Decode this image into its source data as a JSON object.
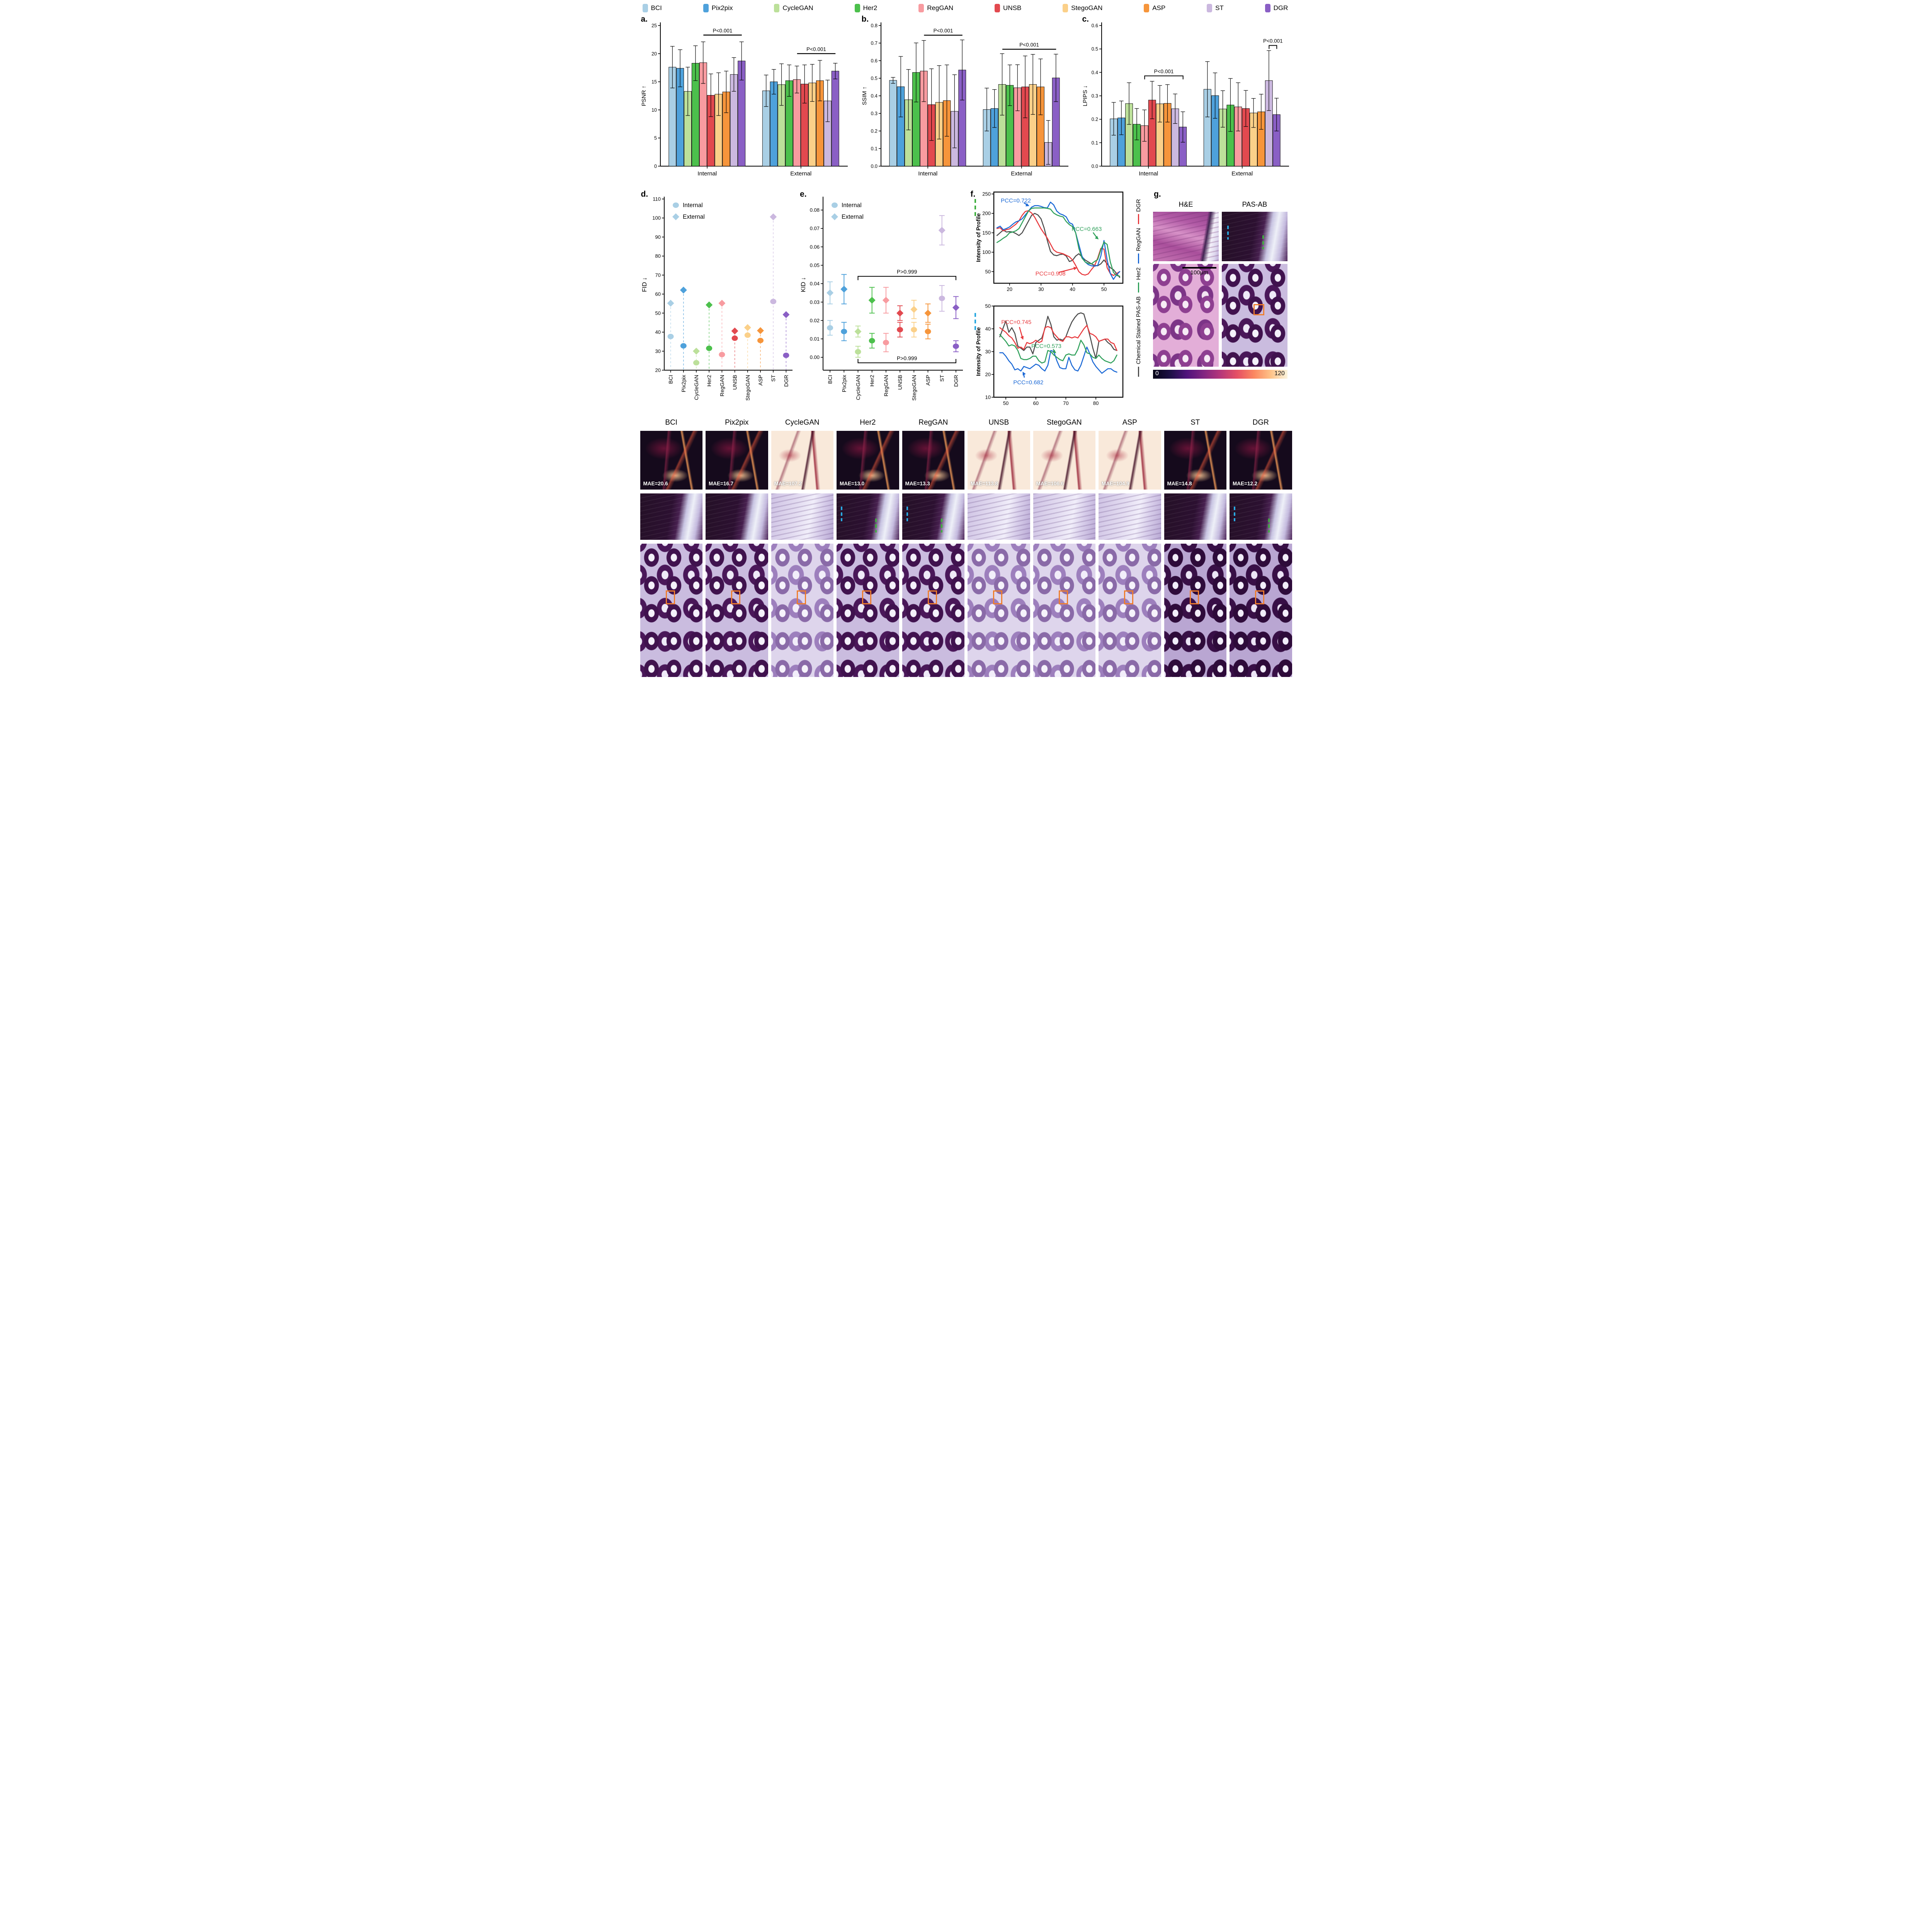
{
  "legend": {
    "items": [
      {
        "label": "BCI",
        "color": "#A9CFE5"
      },
      {
        "label": "Pix2pix",
        "color": "#4EA1DB"
      },
      {
        "label": "CycleGAN",
        "color": "#BCE09A"
      },
      {
        "label": "Her2",
        "color": "#4CC04C"
      },
      {
        "label": "RegGAN",
        "color": "#F89BA0"
      },
      {
        "label": "UNSB",
        "color": "#E2494F"
      },
      {
        "label": "StegoGAN",
        "color": "#FBD089"
      },
      {
        "label": "ASP",
        "color": "#F6953B"
      },
      {
        "label": "ST",
        "color": "#CBB8DF"
      },
      {
        "label": "DGR",
        "color": "#8A5FC5"
      }
    ]
  },
  "chart_data": {
    "colors": [
      "#A9CFE5",
      "#4EA1DB",
      "#BCE09A",
      "#4CC04C",
      "#F89BA0",
      "#E2494F",
      "#FBD089",
      "#F6953B",
      "#CBB8DF",
      "#8A5FC5"
    ],
    "methods": [
      "BCI",
      "Pix2pix",
      "CycleGAN",
      "Her2",
      "RegGAN",
      "UNSB",
      "StegoGAN",
      "ASP",
      "ST",
      "DGR"
    ],
    "psnr": {
      "type": "bar",
      "tag": "a.",
      "ylabel": "PSNR ↑",
      "ylim": [
        0,
        25
      ],
      "yticks": [
        0,
        5,
        10,
        15,
        20,
        25
      ],
      "ydec": 0,
      "groups": [
        "Internal",
        "External"
      ],
      "values": [
        [
          17.6,
          17.4,
          13.3,
          18.3,
          18.4,
          12.6,
          12.8,
          13.2,
          16.3,
          18.7
        ],
        [
          13.4,
          15.0,
          14.5,
          15.2,
          15.4,
          14.6,
          14.8,
          15.2,
          11.6,
          16.9
        ]
      ],
      "errors": [
        [
          3.7,
          3.3,
          4.3,
          3.1,
          3.7,
          3.8,
          3.8,
          3.7,
          3.0,
          3.4
        ],
        [
          2.8,
          2.2,
          3.7,
          2.8,
          2.4,
          3.4,
          3.3,
          3.6,
          3.7,
          1.4
        ]
      ],
      "annotations": [
        {
          "group": 0,
          "from": 4,
          "to": 9,
          "y": 23.3,
          "label": "P<0.001",
          "style": "line"
        },
        {
          "group": 1,
          "from": 4,
          "to": 9,
          "y": 20.0,
          "label": "P<0.001",
          "style": "line"
        }
      ]
    },
    "ssim": {
      "type": "bar",
      "tag": "b.",
      "ylabel": "SSIM ↑",
      "ylim": [
        0,
        0.8
      ],
      "yticks": [
        0,
        0.1,
        0.2,
        0.3,
        0.4,
        0.5,
        0.6,
        0.7,
        0.8
      ],
      "ydec": 1,
      "groups": [
        "Internal",
        "External"
      ],
      "values": [
        [
          0.488,
          0.452,
          0.378,
          0.533,
          0.541,
          0.35,
          0.363,
          0.373,
          0.312,
          0.547
        ],
        [
          0.322,
          0.328,
          0.465,
          0.46,
          0.446,
          0.451,
          0.465,
          0.451,
          0.135,
          0.502
        ]
      ],
      "errors": [
        [
          0.017,
          0.172,
          0.172,
          0.168,
          0.174,
          0.204,
          0.209,
          0.203,
          0.208,
          0.171
        ],
        [
          0.122,
          0.108,
          0.175,
          0.116,
          0.131,
          0.176,
          0.171,
          0.159,
          0.125,
          0.135
        ]
      ],
      "annotations": [
        {
          "group": 0,
          "from": 4,
          "to": 9,
          "y": 0.745,
          "label": "P<0.001",
          "style": "line"
        },
        {
          "group": 1,
          "from": 2,
          "to": 9,
          "y": 0.665,
          "label": "P<0.001",
          "style": "line"
        }
      ]
    },
    "lpips": {
      "type": "bar",
      "tag": "c.",
      "ylabel": "LPIPS ↓",
      "ylim": [
        0,
        0.6
      ],
      "yticks": [
        0,
        0.1,
        0.2,
        0.3,
        0.4,
        0.5,
        0.6
      ],
      "ydec": 1,
      "groups": [
        "Internal",
        "External"
      ],
      "values": [
        [
          0.202,
          0.206,
          0.267,
          0.179,
          0.173,
          0.282,
          0.266,
          0.268,
          0.245,
          0.167
        ],
        [
          0.328,
          0.301,
          0.244,
          0.261,
          0.253,
          0.246,
          0.227,
          0.232,
          0.365,
          0.22
        ]
      ],
      "errors": [
        [
          0.07,
          0.072,
          0.089,
          0.067,
          0.067,
          0.08,
          0.078,
          0.08,
          0.063,
          0.065
        ],
        [
          0.118,
          0.097,
          0.078,
          0.113,
          0.103,
          0.077,
          0.062,
          0.075,
          0.128,
          0.07
        ]
      ],
      "annotations": [
        {
          "group": 0,
          "from": 4,
          "to": 9,
          "y": 0.385,
          "label": "P<0.001",
          "style": "bracket"
        },
        {
          "group": 1,
          "from": 8,
          "to": 9,
          "y": 0.515,
          "label": "P<0.001",
          "style": "bracket"
        }
      ]
    },
    "fid": {
      "type": "scatter",
      "tag": "d.",
      "ylabel": "FID ↓",
      "ylim": [
        20,
        110
      ],
      "yticks": [
        20,
        30,
        40,
        50,
        60,
        70,
        80,
        90,
        100,
        110
      ],
      "ydec": 0,
      "legend": [
        "Internal",
        "External"
      ],
      "internal": [
        37.7,
        32.8,
        23.9,
        31.5,
        28.2,
        36.8,
        38.4,
        35.6,
        56.1,
        27.8
      ],
      "external": [
        55.2,
        62.1,
        30.0,
        54.3,
        55.2,
        40.6,
        42.4,
        40.8,
        100.6,
        49.2
      ]
    },
    "kid": {
      "type": "scatter",
      "tag": "e.",
      "ylabel": "KID ↓",
      "ylim": [
        -0.007,
        0.086
      ],
      "yticks": [
        0,
        0.01,
        0.02,
        0.03,
        0.04,
        0.05,
        0.06,
        0.07,
        0.08
      ],
      "ydec": 2,
      "legend": [
        "Internal",
        "External"
      ],
      "internal": [
        0.016,
        0.014,
        0.003,
        0.009,
        0.008,
        0.015,
        0.015,
        0.014,
        0.032,
        0.006
      ],
      "internal_err": [
        0.004,
        0.005,
        0.003,
        0.004,
        0.005,
        0.004,
        0.004,
        0.004,
        0.007,
        0.003
      ],
      "external": [
        0.035,
        0.037,
        0.014,
        0.031,
        0.031,
        0.024,
        0.026,
        0.024,
        0.069,
        0.027
      ],
      "external_err": [
        0.006,
        0.008,
        0.003,
        0.007,
        0.007,
        0.004,
        0.005,
        0.005,
        0.008,
        0.006
      ],
      "brackets": [
        {
          "from": 2,
          "to": 9,
          "y": 0.044,
          "label": "P>0.999",
          "dir": "down"
        },
        {
          "from": 2,
          "to": 9,
          "y": -0.003,
          "label": "P>0.999",
          "dir": "up"
        }
      ]
    },
    "profile_top": {
      "type": "line",
      "tag": "f.",
      "ylabel": "Intensity of Profile",
      "marker_color": "#3faf3f",
      "xlim": [
        15,
        56
      ],
      "xticks": [
        20,
        30,
        40,
        50
      ],
      "ylim": [
        20,
        255
      ],
      "yticks": [
        50,
        100,
        150,
        200,
        250
      ],
      "x_start": 16,
      "series": [
        {
          "name": "Chemical Stained PAS-AB",
          "color": "#4d4d4d",
          "y": [
            143,
            150,
            157,
            152,
            153,
            152,
            148,
            143,
            150,
            165,
            180,
            195,
            200,
            196,
            186,
            162,
            130,
            102,
            93,
            91,
            94,
            95,
            90,
            76,
            79,
            90,
            96,
            88,
            80,
            75,
            70,
            66,
            65,
            70,
            80,
            70,
            60,
            55,
            45,
            35
          ]
        },
        {
          "name": "DGR",
          "color": "#e8393d",
          "y": [
            161,
            163,
            155,
            158,
            160,
            166,
            172,
            181,
            195,
            205,
            207,
            201,
            190,
            175,
            160,
            148,
            136,
            121,
            106,
            100,
            98,
            96,
            92,
            88,
            80,
            66,
            50,
            43,
            41,
            44,
            55,
            65,
            85,
            110,
            108,
            60,
            45,
            40,
            45,
            50
          ]
        },
        {
          "name": "RegGAN",
          "color": "#1b69d6",
          "y": [
            163,
            167,
            158,
            161,
            165,
            172,
            178,
            181,
            186,
            196,
            206,
            216,
            220,
            220,
            218,
            215,
            214,
            229,
            222,
            206,
            199,
            196,
            191,
            176,
            172,
            150,
            120,
            90,
            75,
            68,
            65,
            64,
            66,
            90,
            130,
            80,
            45,
            30,
            42,
            50
          ]
        },
        {
          "name": "Her2",
          "color": "#2fa05a",
          "y": [
            125,
            130,
            136,
            141,
            150,
            152,
            155,
            161,
            176,
            191,
            206,
            213,
            214,
            214,
            214,
            214,
            213,
            211,
            201,
            196,
            193,
            191,
            179,
            171,
            166,
            150,
            110,
            85,
            75,
            71,
            70,
            76,
            81,
            106,
            126,
            120,
            75,
            48,
            40,
            38
          ]
        }
      ],
      "annotations": [
        {
          "label": "PCC=0.722",
          "color": "#1b69d6",
          "lx": 22,
          "ly": 233,
          "ax": 26.3,
          "ay": 219
        },
        {
          "label": "PCC=0.663",
          "color": "#2fa05a",
          "lx": 44.5,
          "ly": 160,
          "ax": 48.3,
          "ay": 133
        },
        {
          "label": "PCC=0.908",
          "color": "#e8393d",
          "lx": 33,
          "ly": 45,
          "ax": 41.5,
          "ay": 60
        }
      ]
    },
    "profile_bottom": {
      "type": "line",
      "tag": "",
      "ylabel": "Intensity of Profile",
      "marker_color": "#29a8e0",
      "xlim": [
        46,
        89
      ],
      "xticks": [
        50,
        60,
        70,
        80
      ],
      "ylim": [
        10,
        50
      ],
      "yticks": [
        10,
        20,
        30,
        40,
        50
      ],
      "x_start": 48,
      "series": [
        {
          "name": "Chemical Stained PAS-AB",
          "color": "#4d4d4d",
          "y": [
            36.5,
            40,
            43.5,
            38.5,
            40.5,
            38,
            32.5,
            31.5,
            30.5,
            32,
            32,
            29,
            34,
            35,
            36,
            40,
            45.5,
            42,
            36.5,
            35,
            35.5,
            35,
            36.5,
            40,
            43,
            45,
            46.5,
            47,
            46.5,
            42,
            37,
            31.5,
            27,
            34.5,
            35,
            35.5,
            34,
            33,
            31,
            30.5
          ]
        },
        {
          "name": "DGR",
          "color": "#e8393d",
          "y": [
            40.5,
            39.5,
            38.5,
            37,
            36,
            34,
            31.5,
            32,
            31,
            34,
            33.5,
            34,
            35,
            34,
            34.5,
            40.5,
            41,
            40.5,
            38,
            36.5,
            35,
            34.5,
            36.5,
            36.5,
            36,
            36.5,
            36,
            38,
            40,
            41.5,
            38,
            37.5,
            36.5,
            34.5,
            35,
            35.5,
            35.5,
            34,
            33.5,
            30.5
          ]
        },
        {
          "name": "RegGAN",
          "color": "#1b69d6",
          "y": [
            29.5,
            29.5,
            28,
            26,
            24.5,
            22,
            22.5,
            21.5,
            23.5,
            23,
            22.5,
            23.5,
            24.5,
            24,
            22.5,
            21.5,
            24,
            30.5,
            30,
            26,
            23,
            22.5,
            22.5,
            27.5,
            24,
            22,
            21.5,
            24,
            28,
            32,
            29,
            25.5,
            23.5,
            22,
            20.5,
            21.5,
            22.5,
            22.5,
            21.5,
            21
          ]
        },
        {
          "name": "Her2",
          "color": "#2fa05a",
          "y": [
            37.5,
            36,
            34.5,
            32.5,
            33,
            32.5,
            30.5,
            27,
            26.5,
            26.5,
            27,
            28,
            28,
            26,
            25,
            25.5,
            30.5,
            30,
            28.5,
            27.5,
            26.5,
            26,
            28.5,
            29,
            28.5,
            28.5,
            31,
            35,
            33,
            29.5,
            29,
            27.5,
            27,
            28.5,
            27,
            26,
            25.5,
            25,
            26,
            28.5
          ]
        }
      ],
      "annotations": [
        {
          "label": "PCC=0.745",
          "color": "#e8393d",
          "lx": 53.5,
          "ly": 43,
          "ax": 55.8,
          "ay": 35.2
        },
        {
          "label": "PCC=0.573",
          "color": "#2fa05a",
          "lx": 63.5,
          "ly": 32.5,
          "ax": 66.8,
          "ay": 29.3
        },
        {
          "label": "PCC=0.682",
          "color": "#1b69d6",
          "lx": 57.5,
          "ly": 16.5,
          "ax": 55.6,
          "ay": 21.2
        }
      ]
    },
    "profile_legend": [
      {
        "label": "DGR",
        "color": "#e8393d"
      },
      {
        "label": "RegGAN",
        "color": "#1b69d6"
      },
      {
        "label": "Her2",
        "color": "#2fa05a"
      },
      {
        "label": "Chemical Stained PAS-AB",
        "color": "#4d4d4d"
      }
    ]
  },
  "panel_g": {
    "tag": "g.",
    "col_titles": [
      "H&E",
      "PAS-AB"
    ],
    "scale_bar": "100μm",
    "colorbar": {
      "min": "0",
      "max": "120"
    }
  },
  "bottom": {
    "columns": [
      {
        "label": "BCI",
        "mae": "MAE=20.6",
        "err": "dark",
        "patch": "dark",
        "markers": false,
        "full": "normal"
      },
      {
        "label": "Pix2pix",
        "mae": "MAE=16.7",
        "err": "dark",
        "patch": "dark",
        "markers": false,
        "full": "normal"
      },
      {
        "label": "CycleGAN",
        "mae": "MAE=107.2",
        "err": "bright",
        "patch": "light",
        "markers": false,
        "full": "light"
      },
      {
        "label": "Her2",
        "mae": "MAE=13.0",
        "err": "dark",
        "patch": "dark",
        "markers": true,
        "full": "normal"
      },
      {
        "label": "RegGAN",
        "mae": "MAE=13.3",
        "err": "dark",
        "patch": "dark",
        "markers": true,
        "full": "normal"
      },
      {
        "label": "UNSB",
        "mae": "MAE=113.8",
        "err": "bright",
        "patch": "light",
        "markers": false,
        "full": "light"
      },
      {
        "label": "StegoGAN",
        "mae": "MAE=106.6",
        "err": "bright",
        "patch": "light",
        "markers": false,
        "full": "light"
      },
      {
        "label": "ASP",
        "mae": "MAE=104.9",
        "err": "bright",
        "patch": "light",
        "markers": false,
        "full": "light"
      },
      {
        "label": "ST",
        "mae": "MAE=14.8",
        "err": "dark",
        "patch": "dark",
        "markers": false,
        "full": "darker"
      },
      {
        "label": "DGR",
        "mae": "MAE=12.2",
        "err": "dark",
        "patch": "dark",
        "markers": true,
        "full": "darker"
      }
    ]
  }
}
